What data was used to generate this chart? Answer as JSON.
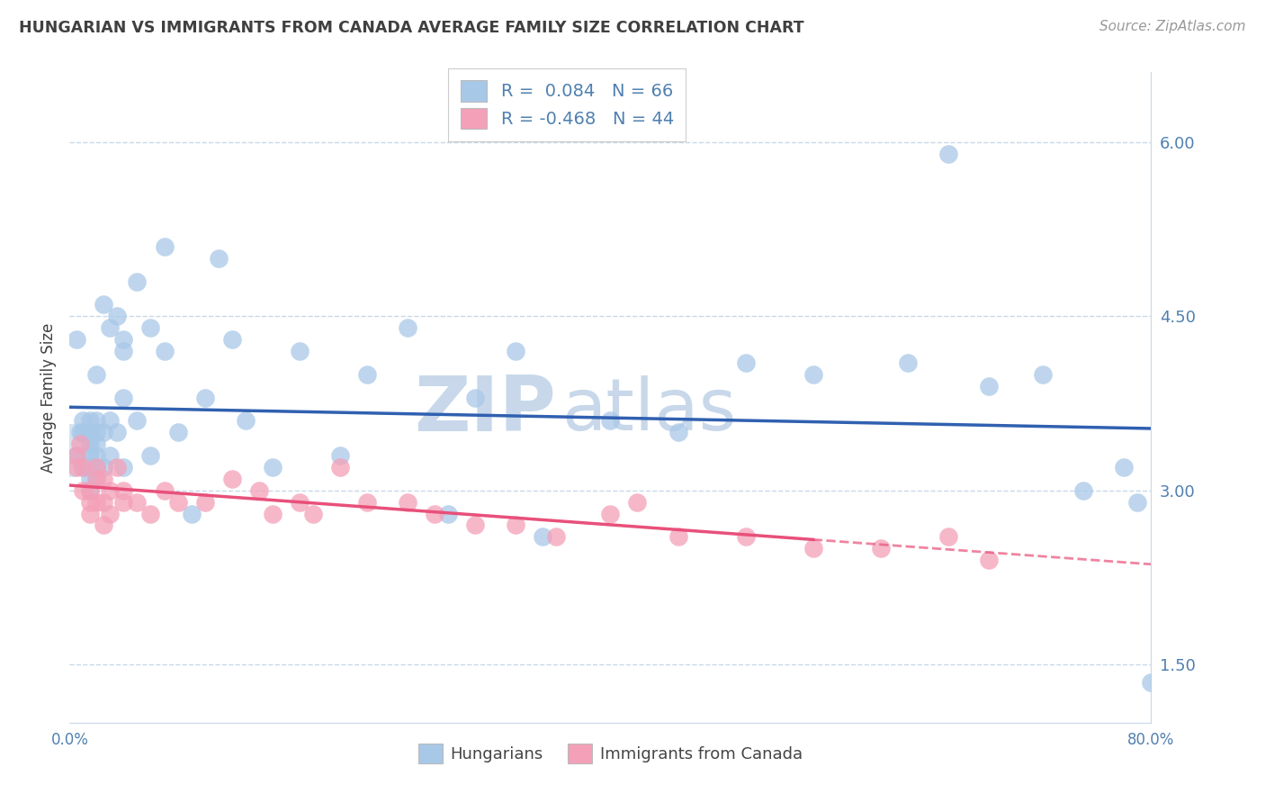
{
  "title": "HUNGARIAN VS IMMIGRANTS FROM CANADA AVERAGE FAMILY SIZE CORRELATION CHART",
  "source": "Source: ZipAtlas.com",
  "ylabel": "Average Family Size",
  "xmin": 0.0,
  "xmax": 0.8,
  "ymin": 1.0,
  "ymax": 6.6,
  "yticks": [
    1.5,
    3.0,
    4.5,
    6.0
  ],
  "xticks": [
    0.0,
    0.2,
    0.4,
    0.6,
    0.8
  ],
  "xticklabels": [
    "0.0%",
    "",
    "",
    "",
    "80.0%"
  ],
  "legend_r1_black": "R = ",
  "legend_r1_blue": "0.084",
  "legend_r1_n": "  N = ",
  "legend_r1_nval": "66",
  "legend_r2_black": "R = ",
  "legend_r2_blue": "-0.468",
  "legend_r2_n": "  N = ",
  "legend_r2_nval": "44",
  "blue_color": "#a8c8e8",
  "pink_color": "#f4a0b8",
  "blue_line_color": "#3060b0",
  "pink_line_color": "#e8507a",
  "title_color": "#404040",
  "axis_color": "#5080b0",
  "grid_color": "#c8d8e8",
  "watermark_color": "#c8d8ea",
  "blue_scatter_x": [
    0.005,
    0.005,
    0.008,
    0.01,
    0.01,
    0.01,
    0.015,
    0.015,
    0.015,
    0.015,
    0.015,
    0.015,
    0.015,
    0.015,
    0.02,
    0.02,
    0.02,
    0.02,
    0.02,
    0.02,
    0.02,
    0.025,
    0.025,
    0.025,
    0.03,
    0.03,
    0.03,
    0.035,
    0.035,
    0.04,
    0.04,
    0.04,
    0.04,
    0.05,
    0.05,
    0.06,
    0.06,
    0.07,
    0.07,
    0.08,
    0.09,
    0.1,
    0.11,
    0.12,
    0.13,
    0.15,
    0.17,
    0.2,
    0.22,
    0.25,
    0.28,
    0.3,
    0.33,
    0.35,
    0.4,
    0.45,
    0.5,
    0.55,
    0.62,
    0.65,
    0.68,
    0.72,
    0.75,
    0.78,
    0.79,
    0.8
  ],
  "blue_scatter_y": [
    3.3,
    4.3,
    3.5,
    3.2,
    3.5,
    3.6,
    3.0,
    3.1,
    3.2,
    3.3,
    3.4,
    3.5,
    3.5,
    3.6,
    3.1,
    3.2,
    3.3,
    3.4,
    3.5,
    3.6,
    4.0,
    3.2,
    3.5,
    4.6,
    3.3,
    3.6,
    4.4,
    3.5,
    4.5,
    3.2,
    3.8,
    4.3,
    4.2,
    3.6,
    4.8,
    3.3,
    4.4,
    4.2,
    5.1,
    3.5,
    2.8,
    3.8,
    5.0,
    4.3,
    3.6,
    3.2,
    4.2,
    3.3,
    4.0,
    4.4,
    2.8,
    3.8,
    4.2,
    2.6,
    3.6,
    3.5,
    4.1,
    4.0,
    4.1,
    5.9,
    3.9,
    4.0,
    3.0,
    3.2,
    2.9,
    1.35
  ],
  "pink_scatter_x": [
    0.005,
    0.005,
    0.008,
    0.01,
    0.01,
    0.015,
    0.015,
    0.015,
    0.02,
    0.02,
    0.02,
    0.025,
    0.025,
    0.025,
    0.03,
    0.03,
    0.035,
    0.04,
    0.04,
    0.05,
    0.06,
    0.07,
    0.08,
    0.1,
    0.12,
    0.14,
    0.15,
    0.17,
    0.18,
    0.2,
    0.22,
    0.25,
    0.27,
    0.3,
    0.33,
    0.36,
    0.4,
    0.42,
    0.45,
    0.5,
    0.55,
    0.6,
    0.65,
    0.68
  ],
  "pink_scatter_y": [
    3.2,
    3.3,
    3.4,
    3.0,
    3.2,
    2.8,
    2.9,
    3.0,
    2.9,
    3.1,
    3.2,
    2.7,
    2.9,
    3.1,
    2.8,
    3.0,
    3.2,
    2.9,
    3.0,
    2.9,
    2.8,
    3.0,
    2.9,
    2.9,
    3.1,
    3.0,
    2.8,
    2.9,
    2.8,
    3.2,
    2.9,
    2.9,
    2.8,
    2.7,
    2.7,
    2.6,
    2.8,
    2.9,
    2.6,
    2.6,
    2.5,
    2.5,
    2.6,
    2.4
  ]
}
